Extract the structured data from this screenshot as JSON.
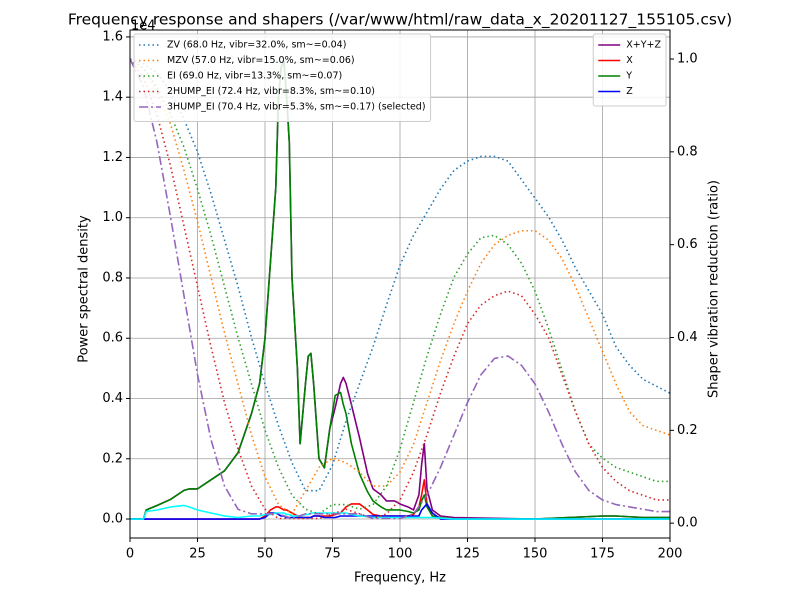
{
  "chart_data": {
    "type": "line",
    "title": "Frequency response and shapers (/var/www/html/raw_data_x_20201127_155105.csv)",
    "x_label": "Frequency, Hz",
    "y_label": "Power spectral density",
    "y2_label": "Shaper vibration reduction (ratio)",
    "y_offset_label": "1e4",
    "xlim": [
      0,
      200
    ],
    "xticks": [
      0,
      25,
      50,
      75,
      100,
      125,
      150,
      175,
      200
    ],
    "ylim": [
      -0.063,
      1.623
    ],
    "yticks": [
      {
        "value": 0,
        "label": "0.0"
      },
      0.2,
      0.4,
      0.6,
      0.8,
      {
        "value": 1,
        "label": "1.0"
      },
      1.2,
      1.4,
      1.6
    ],
    "y2lim": [
      -0.032,
      1.0625
    ],
    "y2ticks": [
      {
        "value": 0,
        "label": "0.0"
      },
      0.2,
      0.4,
      0.6,
      0.8,
      {
        "value": 1,
        "label": "1.0"
      }
    ],
    "grid": true,
    "legend": "upper right",
    "legend2": "upper left",
    "series": [
      {
        "name": "X+Y+Z",
        "color": "#800080",
        "linestyle": "solid",
        "x": [
          0,
          5,
          6,
          10,
          15,
          20,
          22,
          25,
          30,
          35,
          40,
          45,
          48,
          50,
          52,
          54,
          55,
          56,
          57,
          58,
          59,
          60,
          62,
          63,
          65,
          66,
          67,
          68,
          70,
          72,
          74,
          76,
          78,
          79,
          80,
          82,
          85,
          88,
          90,
          93,
          95,
          98,
          100,
          103,
          105,
          107,
          108,
          109,
          110,
          112,
          115,
          120,
          150,
          175,
          180,
          190,
          200
        ],
        "values": [
          0,
          0,
          0.03,
          0.045,
          0.065,
          0.095,
          0.1,
          0.1,
          0.13,
          0.16,
          0.22,
          0.35,
          0.45,
          0.6,
          0.85,
          1.1,
          1.4,
          1.5,
          1.52,
          1.4,
          1.25,
          0.8,
          0.5,
          0.25,
          0.45,
          0.54,
          0.55,
          0.45,
          0.2,
          0.17,
          0.3,
          0.37,
          0.45,
          0.47,
          0.45,
          0.38,
          0.27,
          0.15,
          0.1,
          0.08,
          0.06,
          0.06,
          0.05,
          0.04,
          0.03,
          0.08,
          0.18,
          0.25,
          0.1,
          0.03,
          0.01,
          0.005,
          0,
          0.01,
          0.01,
          0.005,
          0.005
        ]
      },
      {
        "name": "X",
        "color": "#ff0000",
        "linestyle": "solid",
        "x": [
          0,
          5,
          6,
          10,
          15,
          20,
          22,
          25,
          30,
          35,
          40,
          45,
          48,
          50,
          52,
          54,
          55,
          56,
          57,
          58,
          59,
          60,
          62,
          63,
          65,
          66,
          67,
          68,
          70,
          72,
          74,
          76,
          78,
          79,
          80,
          82,
          85,
          88,
          90,
          93,
          95,
          98,
          100,
          103,
          105,
          107,
          108,
          109,
          110,
          112,
          115,
          120,
          150,
          175,
          180,
          190,
          200
        ],
        "values": [
          0,
          0,
          0,
          0,
          0,
          0,
          0,
          0,
          0,
          0,
          0,
          0,
          0,
          0.01,
          0.03,
          0.04,
          0.04,
          0.035,
          0.03,
          0.03,
          0.025,
          0.02,
          0.01,
          0.005,
          0.005,
          0.005,
          0.005,
          0.01,
          0.01,
          0.01,
          0.01,
          0.015,
          0.02,
          0.03,
          0.04,
          0.05,
          0.05,
          0.03,
          0.015,
          0.01,
          0.01,
          0.01,
          0.01,
          0.01,
          0.015,
          0.04,
          0.08,
          0.13,
          0.05,
          0.01,
          0.005,
          0,
          0,
          0,
          0,
          0,
          0
        ]
      },
      {
        "name": "Y",
        "color": "#008000",
        "linestyle": "solid",
        "x": [
          0,
          5,
          6,
          10,
          15,
          20,
          22,
          25,
          30,
          35,
          40,
          45,
          48,
          50,
          52,
          54,
          55,
          56,
          57,
          58,
          59,
          60,
          62,
          63,
          65,
          66,
          67,
          68,
          70,
          72,
          74,
          76,
          78,
          79,
          80,
          82,
          85,
          88,
          90,
          93,
          95,
          98,
          100,
          103,
          105,
          107,
          108,
          109,
          110,
          112,
          115,
          120,
          150,
          175,
          180,
          190,
          200
        ],
        "values": [
          0,
          0,
          0.03,
          0.045,
          0.065,
          0.095,
          0.1,
          0.1,
          0.13,
          0.16,
          0.22,
          0.35,
          0.45,
          0.6,
          0.85,
          1.1,
          1.4,
          1.5,
          1.52,
          1.4,
          1.25,
          0.8,
          0.5,
          0.25,
          0.45,
          0.54,
          0.55,
          0.45,
          0.2,
          0.17,
          0.3,
          0.41,
          0.42,
          0.38,
          0.35,
          0.25,
          0.15,
          0.09,
          0.06,
          0.04,
          0.03,
          0.03,
          0.03,
          0.025,
          0.02,
          0.03,
          0.06,
          0.08,
          0.04,
          0.01,
          0.005,
          0,
          0,
          0.01,
          0.01,
          0.005,
          0.005
        ]
      },
      {
        "name": "Z",
        "color": "#0000ff",
        "linestyle": "solid",
        "x": [
          0,
          5,
          6,
          10,
          15,
          20,
          22,
          25,
          30,
          35,
          40,
          45,
          48,
          50,
          52,
          54,
          55,
          56,
          57,
          58,
          59,
          60,
          62,
          63,
          65,
          66,
          67,
          68,
          70,
          72,
          74,
          76,
          78,
          79,
          80,
          82,
          85,
          88,
          90,
          93,
          95,
          98,
          100,
          103,
          105,
          107,
          108,
          109,
          110,
          112,
          115,
          120,
          150,
          175,
          180,
          190,
          200
        ],
        "values": [
          0,
          0,
          0,
          0,
          0,
          0,
          0,
          0,
          0,
          0,
          0,
          0,
          0,
          0.005,
          0.02,
          0.02,
          0.015,
          0.01,
          0.01,
          0.005,
          0.005,
          0.005,
          0.005,
          0.005,
          0.005,
          0.005,
          0.005,
          0.01,
          0.01,
          0.005,
          0.005,
          0.005,
          0.01,
          0.01,
          0.01,
          0.01,
          0.01,
          0.01,
          0.01,
          0.01,
          0.01,
          0.01,
          0.01,
          0.01,
          0.01,
          0.01,
          0.03,
          0.04,
          0.05,
          0.02,
          0,
          0,
          0,
          0,
          0,
          0,
          0
        ]
      },
      {
        "color": "#00ffff",
        "linestyle": "solid",
        "x": [
          0,
          5,
          6,
          10,
          15,
          20,
          22,
          25,
          30,
          35,
          40,
          45,
          48,
          50,
          52,
          54,
          55,
          56,
          57,
          58,
          59,
          60,
          62,
          63,
          65,
          66,
          67,
          68,
          70,
          72,
          74,
          76,
          78,
          79,
          80,
          82,
          85,
          88,
          90,
          93,
          95,
          98,
          100,
          103,
          105,
          107,
          108,
          109,
          110,
          112,
          115,
          120,
          150,
          175,
          180,
          190,
          200
        ],
        "values": [
          0,
          0,
          0.025,
          0.03,
          0.04,
          0.045,
          0.04,
          0.03,
          0.02,
          0.01,
          0.005,
          0.01,
          0.01,
          0.015,
          0.015,
          0.02,
          0.02,
          0.02,
          0.02,
          0.015,
          0.015,
          0.01,
          0.01,
          0.01,
          0.015,
          0.015,
          0.02,
          0.02,
          0.02,
          0.02,
          0.02,
          0.02,
          0.02,
          0.02,
          0.02,
          0.015,
          0.01,
          0.008,
          0.005,
          0.005,
          0.005,
          0.005,
          0.005,
          0.005,
          0.005,
          0.005,
          0.005,
          0.005,
          0.005,
          0.005,
          0.003,
          0,
          0,
          0,
          0,
          0,
          0
        ]
      },
      {
        "name": "ZV (68.0 Hz, vibr=32.0%, sm~=0.04)",
        "color": "#1f77b4",
        "linestyle": "dotted",
        "axis": "y2",
        "x": [
          0,
          5,
          10,
          15,
          20,
          25,
          30,
          35,
          40,
          45,
          50,
          55,
          60,
          65,
          70,
          75,
          80,
          85,
          90,
          95,
          100,
          105,
          110,
          115,
          120,
          125,
          130,
          135,
          140,
          145,
          150,
          155,
          160,
          165,
          170,
          175,
          180,
          185,
          190,
          195,
          200
        ],
        "values": [
          1.0,
          0.99,
          0.97,
          0.93,
          0.87,
          0.8,
          0.71,
          0.61,
          0.51,
          0.4,
          0.3,
          0.21,
          0.13,
          0.07,
          0.07,
          0.125,
          0.22,
          0.3,
          0.38,
          0.47,
          0.556,
          0.62,
          0.67,
          0.72,
          0.76,
          0.78,
          0.79,
          0.79,
          0.78,
          0.74,
          0.7,
          0.66,
          0.61,
          0.55,
          0.5,
          0.45,
          0.38,
          0.34,
          0.31,
          0.295,
          0.28
        ]
      },
      {
        "name": "MZV (57.0 Hz, vibr=15.0%, sm~=0.06)",
        "color": "#ff7f0e",
        "linestyle": "dotted",
        "axis": "y2",
        "x": [
          0,
          5,
          10,
          15,
          20,
          25,
          30,
          35,
          40,
          45,
          50,
          55,
          60,
          65,
          70,
          75,
          80,
          85,
          90,
          95,
          100,
          105,
          110,
          115,
          120,
          125,
          130,
          135,
          140,
          145,
          150,
          155,
          160,
          165,
          170,
          175,
          180,
          185,
          190,
          195,
          200
        ],
        "values": [
          1.0,
          0.98,
          0.93,
          0.86,
          0.76,
          0.65,
          0.53,
          0.41,
          0.3,
          0.19,
          0.1,
          0.04,
          0.02,
          0.07,
          0.12,
          0.14,
          0.13,
          0.11,
          0.08,
          0.08,
          0.11,
          0.17,
          0.26,
          0.35,
          0.43,
          0.5,
          0.56,
          0.6,
          0.62,
          0.63,
          0.63,
          0.61,
          0.57,
          0.51,
          0.44,
          0.37,
          0.3,
          0.24,
          0.21,
          0.2,
          0.19
        ]
      },
      {
        "name": "EI (69.0 Hz, vibr=13.3%, sm~=0.07)",
        "color": "#2ca02c",
        "linestyle": "dotted",
        "axis": "y2",
        "x": [
          0,
          5,
          10,
          15,
          20,
          25,
          30,
          35,
          40,
          45,
          50,
          55,
          60,
          65,
          70,
          75,
          80,
          85,
          90,
          95,
          100,
          105,
          110,
          115,
          120,
          125,
          130,
          135,
          140,
          145,
          150,
          155,
          160,
          165,
          170,
          175,
          180,
          185,
          190,
          195,
          200
        ],
        "values": [
          1.0,
          0.98,
          0.94,
          0.88,
          0.81,
          0.72,
          0.62,
          0.51,
          0.4,
          0.3,
          0.2,
          0.12,
          0.06,
          0.03,
          0.02,
          0.04,
          0.04,
          0.03,
          0.04,
          0.08,
          0.16,
          0.26,
          0.36,
          0.45,
          0.53,
          0.58,
          0.615,
          0.62,
          0.6,
          0.56,
          0.5,
          0.42,
          0.33,
          0.24,
          0.17,
          0.14,
          0.12,
          0.11,
          0.1,
          0.09,
          0.09
        ]
      },
      {
        "name": "2HUMP_EI (72.4 Hz, vibr=8.3%, sm~=0.10)",
        "color": "#d62728",
        "linestyle": "dotted",
        "axis": "y2",
        "x": [
          0,
          5,
          10,
          15,
          20,
          25,
          30,
          35,
          40,
          45,
          50,
          55,
          60,
          65,
          70,
          75,
          80,
          85,
          90,
          95,
          100,
          105,
          110,
          115,
          120,
          125,
          130,
          135,
          140,
          145,
          150,
          155,
          160,
          165,
          170,
          175,
          180,
          185,
          190,
          195,
          200
        ],
        "values": [
          1.0,
          0.96,
          0.88,
          0.77,
          0.64,
          0.51,
          0.38,
          0.26,
          0.16,
          0.08,
          0.03,
          0.01,
          0.01,
          0.01,
          0.01,
          0.02,
          0.03,
          0.02,
          0.01,
          0.02,
          0.05,
          0.11,
          0.19,
          0.28,
          0.36,
          0.43,
          0.47,
          0.49,
          0.5,
          0.49,
          0.45,
          0.4,
          0.32,
          0.24,
          0.17,
          0.12,
          0.09,
          0.07,
          0.06,
          0.05,
          0.05
        ]
      },
      {
        "name": "3HUMP_EI (70.4 Hz, vibr=5.3%, sm~=0.17) (selected)",
        "color": "#9467bd",
        "linestyle": "dashdot",
        "axis": "y2",
        "x": [
          0,
          5,
          10,
          15,
          20,
          25,
          30,
          35,
          40,
          45,
          50,
          55,
          60,
          65,
          70,
          75,
          80,
          85,
          90,
          95,
          100,
          105,
          110,
          115,
          120,
          125,
          130,
          135,
          140,
          145,
          150,
          155,
          160,
          165,
          170,
          175,
          180,
          185,
          190,
          195,
          200
        ],
        "values": [
          1.0,
          0.94,
          0.82,
          0.66,
          0.49,
          0.32,
          0.18,
          0.08,
          0.03,
          0.02,
          0.02,
          0.02,
          0.01,
          0.02,
          0.02,
          0.02,
          0.02,
          0.02,
          0.01,
          0.01,
          0.01,
          0.02,
          0.06,
          0.12,
          0.19,
          0.26,
          0.32,
          0.355,
          0.36,
          0.34,
          0.3,
          0.24,
          0.17,
          0.11,
          0.07,
          0.05,
          0.04,
          0.035,
          0.03,
          0.025,
          0.025
        ]
      }
    ]
  }
}
